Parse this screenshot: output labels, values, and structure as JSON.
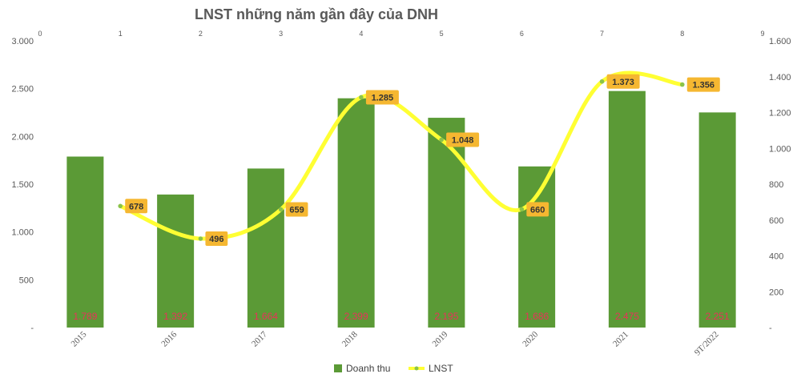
{
  "chart_data": {
    "type": "bar",
    "title": "LNST những năm gần đây của DNH",
    "categories": [
      "2015",
      "2016",
      "2017",
      "2018",
      "2019",
      "2020",
      "2021",
      "9T/2022"
    ],
    "series": [
      {
        "name": "Doanh thu",
        "type": "bar",
        "axis": "left",
        "color": "#5b9a36",
        "values": [
          1789,
          1392,
          1664,
          2399,
          2195,
          1686,
          2475,
          2251
        ],
        "labels": [
          "1.789",
          "1.392",
          "1.664",
          "2.399",
          "2.195",
          "1.686",
          "2.475",
          "2.251"
        ]
      },
      {
        "name": "LNST",
        "type": "line",
        "smooth": true,
        "axis": "right",
        "color": "#ffff33",
        "points": [
          {
            "x": 1,
            "y": 678
          },
          {
            "x": 2,
            "y": 496
          },
          {
            "x": 3,
            "y": 659
          },
          {
            "x": 4,
            "y": 1285
          },
          {
            "x": 5,
            "y": 1048
          },
          {
            "x": 6,
            "y": 660
          },
          {
            "x": 7,
            "y": 1373
          },
          {
            "x": 8,
            "y": 1356
          }
        ],
        "labels": [
          "678",
          "496",
          "659",
          "1.285",
          "1.048",
          "660",
          "1.373",
          "1.356"
        ]
      }
    ],
    "y_left": {
      "ylim": [
        0,
        3000
      ],
      "ticks": [
        3000,
        2500,
        2000,
        1500,
        1000,
        500,
        0
      ],
      "tick_labels": [
        "3.000",
        "2.500",
        "2.000",
        "1.500",
        "1.000",
        "500",
        "-"
      ]
    },
    "y_right": {
      "ylim": [
        0,
        1600
      ],
      "ticks": [
        1600,
        1400,
        1200,
        1000,
        800,
        600,
        400,
        200,
        0
      ],
      "tick_labels": [
        "1.600",
        "1.400",
        "1.200",
        "1.000",
        "800",
        "600",
        "400",
        "200",
        "-"
      ]
    },
    "x_top": {
      "xlim": [
        0,
        9
      ],
      "ticks": [
        0,
        1,
        2,
        3,
        4,
        5,
        6,
        7,
        8,
        9
      ],
      "tick_labels": [
        "0",
        "1",
        "2",
        "3",
        "4",
        "5",
        "6",
        "7",
        "8",
        "9"
      ]
    },
    "legend": {
      "position": "bottom",
      "entries": [
        "Doanh thu",
        "LNST"
      ]
    },
    "grid": false
  }
}
